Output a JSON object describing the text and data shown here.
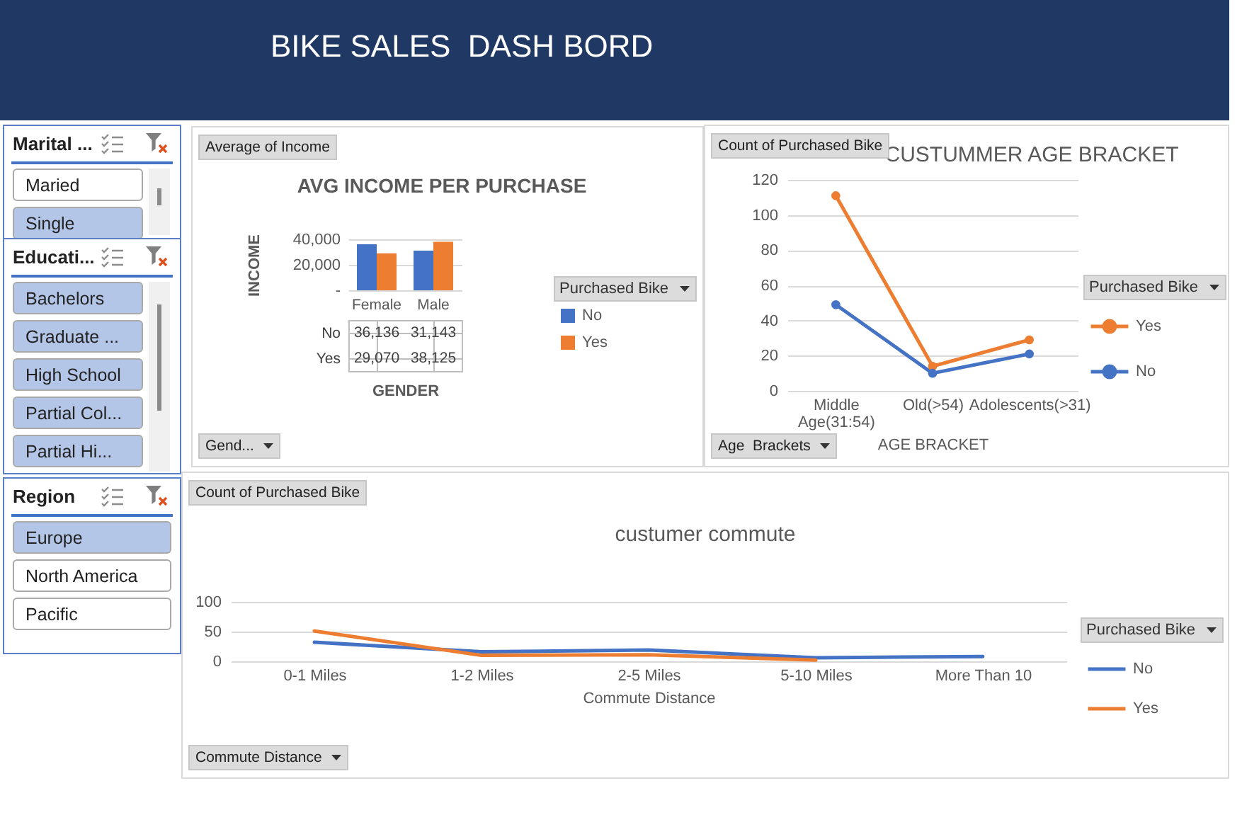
{
  "chart_data": [
    {
      "type": "other",
      "title": "BIKE SALES  DASH BORD"
    },
    {
      "type": "other",
      "title": "Marital ...",
      "annotations": [
        "Maried",
        "Single"
      ],
      "colors": [
        "#ffffff",
        "#b4c6e7"
      ]
    },
    {
      "type": "other",
      "title": "Educati...",
      "annotations": [
        "Bachelors",
        "Graduate ...",
        "High School",
        "Partial Col...",
        "Partial Hi..."
      ],
      "colors": [
        "#b4c6e7",
        "#b4c6e7",
        "#b4c6e7",
        "#b4c6e7",
        "#b4c6e7"
      ]
    },
    {
      "type": "other",
      "title": "Region",
      "annotations": [
        "Europe",
        "North America",
        "Pacific"
      ],
      "colors": [
        "#b4c6e7",
        "#ffffff",
        "#ffffff"
      ]
    },
    {
      "type": "bar",
      "title": "AVG INCOME PER PURCHASE",
      "categories": [
        "Female",
        "Male"
      ],
      "series": [
        {
          "name": "No",
          "color": "#4472c4",
          "values": [
            36136,
            31143
          ],
          "value_labels": [
            "36,136",
            "31,143"
          ]
        },
        {
          "name": "Yes",
          "color": "#ed7d31",
          "values": [
            29070,
            38125
          ],
          "value_labels": [
            "29,070",
            "38,125"
          ]
        }
      ],
      "xlabel": "GENDER",
      "ylabel": "INCOME",
      "legend_title": "Purchased Bike",
      "legend": "right",
      "ylim": [
        0,
        40000
      ],
      "yticks": [
        {
          "value": 0,
          "label": "-"
        },
        {
          "value": 20000,
          "label": "20,000"
        },
        {
          "value": 40000,
          "label": "40,000"
        }
      ],
      "grid": "y",
      "annotations": [
        "Average of Income",
        "Gend..."
      ]
    },
    {
      "type": "line",
      "title": "CUSTUMMER AGE BRACKET",
      "categories": [
        "Middle Age(31:54)",
        "Old(>54)",
        "Adolescents(>31)"
      ],
      "series": [
        {
          "name": "Yes",
          "color": "#ed7d31",
          "values": [
            111,
            14,
            29
          ]
        },
        {
          "name": "No",
          "color": "#4472c4",
          "values": [
            49,
            10,
            21
          ]
        }
      ],
      "xlabel": "AGE BRACKET",
      "legend_title": "Purchased Bike",
      "legend": "right",
      "ylim": [
        0,
        120
      ],
      "yticks": [
        0,
        20,
        40,
        60,
        80,
        100,
        120
      ],
      "grid": "y",
      "marker": "circle",
      "annotations": [
        "Count of Purchased Bike",
        "Age  Brackets"
      ]
    },
    {
      "type": "line",
      "title": "custumer commute",
      "categories": [
        "0-1 Miles",
        "1-2 Miles",
        "2-5 Miles",
        "5-10 Miles",
        "More Than 10"
      ],
      "series": [
        {
          "name": "No",
          "color": "#4472c4",
          "values": [
            32,
            16,
            19,
            6,
            8
          ]
        },
        {
          "name": "Yes",
          "color": "#ed7d31",
          "values": [
            51,
            10,
            11,
            2,
            null
          ]
        }
      ],
      "xlabel": "Commute Distance",
      "legend_title": "Purchased Bike",
      "legend": "right",
      "ylim": [
        0,
        100
      ],
      "yticks": [
        0,
        50,
        100
      ],
      "grid": "y",
      "annotations": [
        "Count of Purchased Bike",
        "Commute Distance"
      ]
    }
  ]
}
